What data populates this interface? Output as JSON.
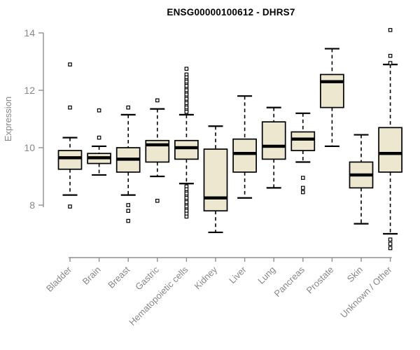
{
  "title": "ENSG00000100612 - DHRS7",
  "colors": {
    "box_fill": "#ECE7CE",
    "box_border": "#000000",
    "median": "#000000",
    "whisker": "#000000",
    "axis": "#8f8f8f",
    "tick_label": "#878787",
    "title": "#000000",
    "background": "#ffffff"
  },
  "chart_data": {
    "type": "boxplot",
    "title": "ENSG00000100612 - DHRS7",
    "ylabel": "Expression",
    "xlabel": "",
    "yticks": [
      8,
      10,
      12,
      14
    ],
    "ylim": [
      6.2,
      14.3
    ],
    "grid": false,
    "legend": "none",
    "categories": [
      "Bladder",
      "Brain",
      "Breast",
      "Gastric",
      "Hematopoietic cells",
      "Kidney",
      "Liver",
      "Lung",
      "Pancreas",
      "Prostate",
      "Skin",
      "Unknown / Other"
    ],
    "series": [
      {
        "name": "Bladder",
        "whisker_low": 8.35,
        "q1": 9.25,
        "median": 9.65,
        "q3": 9.9,
        "whisker_high": 10.35,
        "outliers": [
          12.9,
          11.4,
          7.95
        ]
      },
      {
        "name": "Brain",
        "whisker_low": 9.05,
        "q1": 9.45,
        "median": 9.65,
        "q3": 9.8,
        "whisker_high": 10.05,
        "outliers": [
          11.3,
          10.35
        ]
      },
      {
        "name": "Breast",
        "whisker_low": 8.35,
        "q1": 9.15,
        "median": 9.6,
        "q3": 10.0,
        "whisker_high": 11.15,
        "outliers": [
          11.4,
          8.0,
          7.8,
          7.45
        ]
      },
      {
        "name": "Gastric",
        "whisker_low": 9.0,
        "q1": 9.5,
        "median": 10.1,
        "q3": 10.25,
        "whisker_high": 11.35,
        "outliers": [
          11.65,
          8.15
        ]
      },
      {
        "name": "Hematopoietic cells",
        "whisker_low": 8.75,
        "q1": 9.6,
        "median": 10.0,
        "q3": 10.25,
        "whisker_high": 11.15,
        "outliers": [
          12.75,
          12.55,
          12.45,
          12.35,
          12.3,
          12.2,
          12.15,
          12.05,
          12.0,
          11.9,
          11.85,
          11.75,
          11.7,
          11.6,
          11.55,
          11.45,
          11.4,
          11.3,
          11.25,
          8.65,
          8.55,
          8.45,
          8.4,
          8.3,
          8.25,
          8.15,
          8.1,
          8.0,
          7.95,
          7.85,
          7.8,
          7.7,
          7.6
        ]
      },
      {
        "name": "Kidney",
        "whisker_low": 7.05,
        "q1": 7.8,
        "median": 8.25,
        "q3": 9.95,
        "whisker_high": 10.75,
        "outliers": []
      },
      {
        "name": "Liver",
        "whisker_low": 8.25,
        "q1": 9.15,
        "median": 9.8,
        "q3": 10.3,
        "whisker_high": 11.8,
        "outliers": []
      },
      {
        "name": "Lung",
        "whisker_low": 8.6,
        "q1": 9.6,
        "median": 10.05,
        "q3": 10.9,
        "whisker_high": 11.4,
        "outliers": []
      },
      {
        "name": "Pancreas",
        "whisker_low": 9.5,
        "q1": 9.9,
        "median": 10.3,
        "q3": 10.55,
        "whisker_high": 11.2,
        "outliers": [
          8.95,
          8.6,
          8.45
        ]
      },
      {
        "name": "Prostate",
        "whisker_low": 10.05,
        "q1": 11.4,
        "median": 12.3,
        "q3": 12.55,
        "whisker_high": 13.45,
        "outliers": []
      },
      {
        "name": "Skin",
        "whisker_low": 7.35,
        "q1": 8.6,
        "median": 9.05,
        "q3": 9.5,
        "whisker_high": 10.45,
        "outliers": []
      },
      {
        "name": "Unknown / Other",
        "whisker_low": 7.0,
        "q1": 9.15,
        "median": 9.8,
        "q3": 10.7,
        "whisker_high": 12.9,
        "outliers": [
          14.1,
          13.2,
          12.95,
          6.8,
          6.65,
          6.5
        ]
      }
    ]
  }
}
